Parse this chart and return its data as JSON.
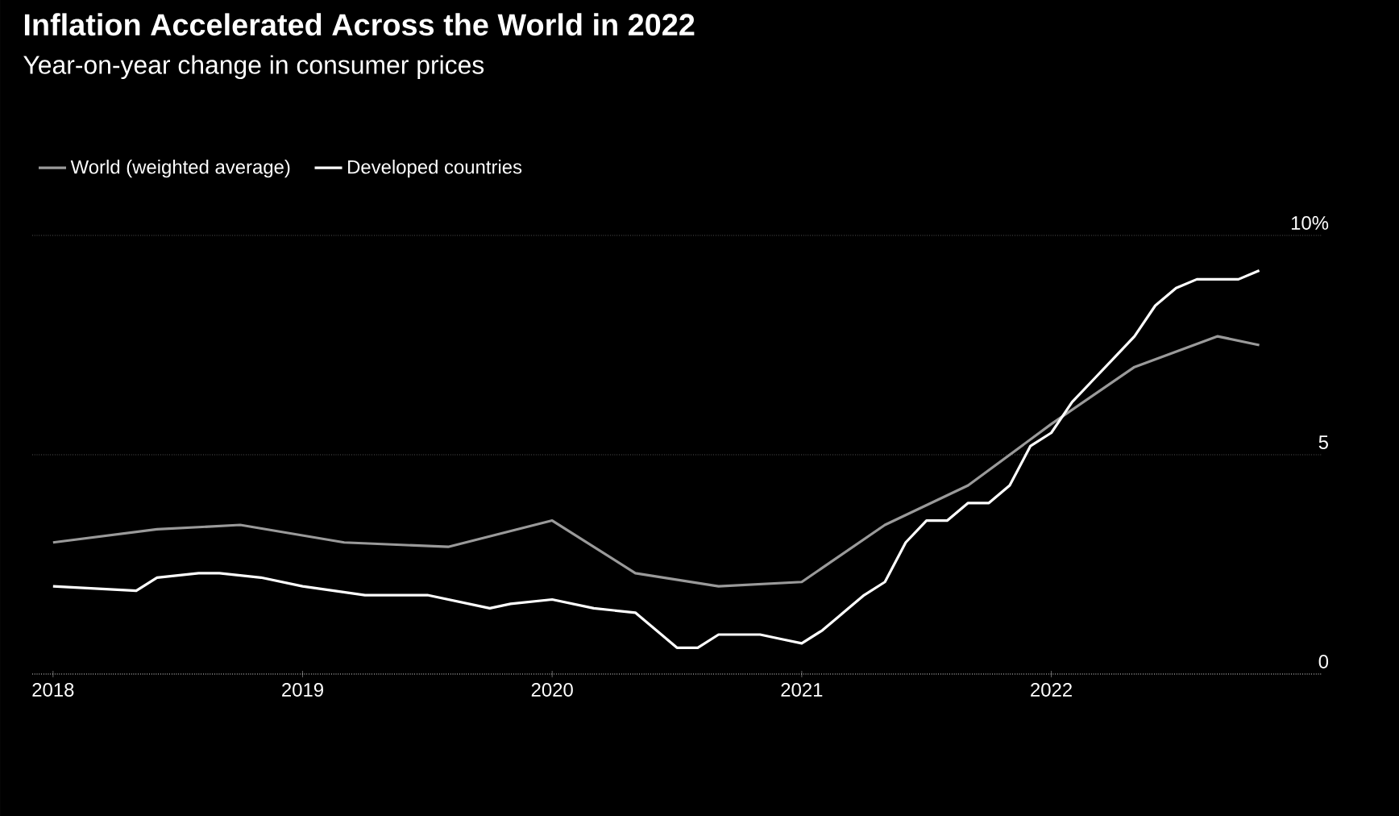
{
  "chart_data": {
    "type": "line",
    "title": "Inflation Accelerated Across the World in 2022",
    "subtitle": "Year-on-year change in consumer prices",
    "xlim": [
      "2017-12",
      "2023-02"
    ],
    "xticks": [
      "2018",
      "2019",
      "2020",
      "2021",
      "2022"
    ],
    "ylim": [
      0,
      10
    ],
    "yticks": [
      0,
      5,
      {
        "value": 10,
        "label": "10%"
      }
    ],
    "grid": "y",
    "legend": "top left",
    "marker": "none",
    "line_style": "solid",
    "series": [
      {
        "name": "World (weighted average)",
        "color": "#9a9a9a",
        "x": [
          "2018-01",
          "2018-06",
          "2018-10",
          "2019-03",
          "2019-08",
          "2020-01",
          "2020-05",
          "2020-09",
          "2021-01",
          "2021-05",
          "2021-09",
          "2022-01",
          "2022-05",
          "2022-09",
          "2022-11"
        ],
        "values": [
          3.0,
          3.3,
          3.4,
          3.0,
          2.9,
          3.5,
          2.3,
          2.0,
          2.1,
          3.4,
          4.3,
          5.7,
          7.0,
          7.7,
          7.5
        ]
      },
      {
        "name": "Developed countries",
        "color": "#ffffff",
        "x": [
          "2018-01",
          "2018-05",
          "2018-06",
          "2018-08",
          "2018-09",
          "2018-11",
          "2019-01",
          "2019-04",
          "2019-06",
          "2019-07",
          "2019-10",
          "2019-11",
          "2020-01",
          "2020-03",
          "2020-05",
          "2020-06",
          "2020-07",
          "2020-08",
          "2020-09",
          "2020-11",
          "2020-12",
          "2021-01",
          "2021-02",
          "2021-03",
          "2021-04",
          "2021-05",
          "2021-06",
          "2021-07",
          "2021-08",
          "2021-09",
          "2021-10",
          "2021-11",
          "2021-12",
          "2022-01",
          "2022-02",
          "2022-03",
          "2022-04",
          "2022-05",
          "2022-06",
          "2022-07",
          "2022-08",
          "2022-10",
          "2022-11"
        ],
        "values": [
          2.0,
          1.9,
          2.2,
          2.3,
          2.3,
          2.2,
          2.0,
          1.8,
          1.8,
          1.8,
          1.5,
          1.6,
          1.7,
          1.5,
          1.4,
          1.0,
          0.6,
          0.6,
          0.9,
          0.9,
          0.8,
          0.7,
          1.0,
          1.4,
          1.8,
          2.1,
          3.0,
          3.5,
          3.5,
          3.9,
          3.9,
          4.3,
          5.2,
          5.5,
          6.2,
          6.7,
          7.2,
          7.7,
          8.4,
          8.8,
          9.0,
          9.0,
          9.2
        ]
      }
    ]
  }
}
